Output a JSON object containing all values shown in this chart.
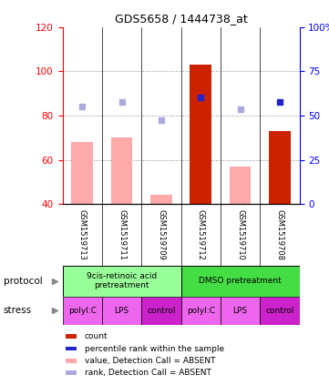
{
  "title": "GDS5658 / 1444738_at",
  "samples": [
    "GSM1519713",
    "GSM1519711",
    "GSM1519709",
    "GSM1519712",
    "GSM1519710",
    "GSM1519708"
  ],
  "ylim_left": [
    40,
    120
  ],
  "ylim_right": [
    0,
    100
  ],
  "yticks_left": [
    40,
    60,
    80,
    100,
    120
  ],
  "yticks_right": [
    0,
    25,
    50,
    75,
    100
  ],
  "ytick_labels_right": [
    "0",
    "25",
    "50",
    "75",
    "100%"
  ],
  "pink_bar_values": [
    68,
    70,
    44,
    103,
    57,
    73
  ],
  "pink_bar_colors": [
    "#ffaaaa",
    "#ffaaaa",
    "#ffaaaa",
    "#cc2200",
    "#ffaaaa",
    "#cc2200"
  ],
  "blue_sq_values": [
    84,
    86,
    78,
    88,
    83,
    86
  ],
  "blue_sq_colors": [
    "#aaaadd",
    "#aaaadd",
    "#aaaadd",
    "#2222cc",
    "#aaaadd",
    "#2222cc"
  ],
  "protocol_groups": [
    {
      "label": "9cis-retinoic acid\npretreatment",
      "color": "#99ff99",
      "span": [
        0,
        3
      ]
    },
    {
      "label": "DMSO pretreatment",
      "color": "#44dd44",
      "span": [
        3,
        6
      ]
    }
  ],
  "stress_labels": [
    "polyI:C",
    "LPS",
    "control",
    "polyI:C",
    "LPS",
    "control"
  ],
  "stress_colors": [
    "#ee66ee",
    "#ee66ee",
    "#cc22cc",
    "#ee66ee",
    "#ee66ee",
    "#cc22cc"
  ],
  "protocol_label": "protocol",
  "stress_label": "stress",
  "legend_items": [
    {
      "color": "#cc2200",
      "label": "count"
    },
    {
      "color": "#2222cc",
      "label": "percentile rank within the sample"
    },
    {
      "color": "#ffaaaa",
      "label": "value, Detection Call = ABSENT"
    },
    {
      "color": "#aaaadd",
      "label": "rank, Detection Call = ABSENT"
    }
  ],
  "bg_color": "#ffffff",
  "sample_bg": "#cccccc",
  "grid_color": "#888888"
}
